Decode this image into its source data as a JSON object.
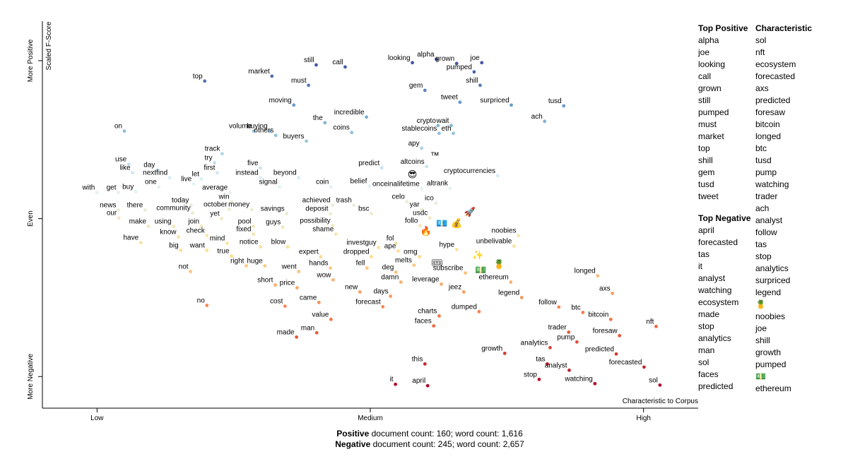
{
  "chart_data": {
    "type": "scatter",
    "y_label": "Scaled F-Score",
    "x_label": "Characteristic to Corpus",
    "xlim": [
      -0.1,
      1.1
    ],
    "ylim": [
      -1.2,
      1.25
    ],
    "xticks": [
      {
        "value": 0,
        "label": "Low"
      },
      {
        "value": 0.5,
        "label": "Medium"
      },
      {
        "value": 1,
        "label": "High"
      }
    ],
    "yticks": [
      {
        "value": -1,
        "label": "More Negative"
      },
      {
        "value": 0,
        "label": "Even"
      },
      {
        "value": 1,
        "label": "More Positive"
      }
    ],
    "points": [
      {
        "label": "still",
        "x": 0.401,
        "y": 0.973
      },
      {
        "label": "call",
        "x": 0.454,
        "y": 0.96
      },
      {
        "label": "looking",
        "x": 0.577,
        "y": 0.987
      },
      {
        "label": "alpha",
        "x": 0.621,
        "y": 1.009
      },
      {
        "label": "joe",
        "x": 0.704,
        "y": 0.987
      },
      {
        "label": "market",
        "x": 0.32,
        "y": 0.902
      },
      {
        "label": "grown",
        "x": 0.658,
        "y": 0.982
      },
      {
        "label": "pumped",
        "x": 0.69,
        "y": 0.929
      },
      {
        "label": "top",
        "x": 0.197,
        "y": 0.871
      },
      {
        "label": "must",
        "x": 0.387,
        "y": 0.844
      },
      {
        "label": "gem",
        "x": 0.6,
        "y": 0.812
      },
      {
        "label": "shill",
        "x": 0.701,
        "y": 0.844
      },
      {
        "label": "tweet",
        "x": 0.664,
        "y": 0.737
      },
      {
        "label": "surpriced",
        "x": 0.758,
        "y": 0.719
      },
      {
        "label": "tusd",
        "x": 0.854,
        "y": 0.714
      },
      {
        "label": "moving",
        "x": 0.36,
        "y": 0.719
      },
      {
        "label": "incredible",
        "x": 0.493,
        "y": 0.643
      },
      {
        "label": "wait",
        "x": 0.648,
        "y": 0.589
      },
      {
        "label": "buying",
        "x": 0.316,
        "y": 0.554
      },
      {
        "label": "volume",
        "x": 0.287,
        "y": 0.554
      },
      {
        "label": "others",
        "x": 0.327,
        "y": 0.527
      },
      {
        "label": "the",
        "x": 0.417,
        "y": 0.607
      },
      {
        "label": "crypto",
        "x": 0.624,
        "y": 0.589
      },
      {
        "label": "ach",
        "x": 0.819,
        "y": 0.616
      },
      {
        "label": "on",
        "x": 0.05,
        "y": 0.554
      },
      {
        "label": "coins",
        "x": 0.466,
        "y": 0.545
      },
      {
        "label": "buyers",
        "x": 0.383,
        "y": 0.491
      },
      {
        "label": "stablecoins",
        "x": 0.626,
        "y": 0.54
      },
      {
        "label": "eth",
        "x": 0.652,
        "y": 0.54
      },
      {
        "label": "track",
        "x": 0.229,
        "y": 0.411
      },
      {
        "label": "apy",
        "x": 0.594,
        "y": 0.446
      },
      {
        "label": "™",
        "x": 0.618,
        "y": 0.402
      },
      {
        "label": "use",
        "x": 0.058,
        "y": 0.344
      },
      {
        "label": "five",
        "x": 0.299,
        "y": 0.321
      },
      {
        "label": "altcoins",
        "x": 0.603,
        "y": 0.33
      },
      {
        "label": "try",
        "x": 0.215,
        "y": 0.353
      },
      {
        "label": "day",
        "x": 0.11,
        "y": 0.308
      },
      {
        "label": "first",
        "x": 0.22,
        "y": 0.29
      },
      {
        "label": "predict",
        "x": 0.521,
        "y": 0.321
      },
      {
        "label": "😎",
        "x": 0.577,
        "y": 0.281
      },
      {
        "label": "cryptocurrencies",
        "x": 0.733,
        "y": 0.272
      },
      {
        "label": "like",
        "x": 0.065,
        "y": 0.29
      },
      {
        "label": "nextfind",
        "x": 0.133,
        "y": 0.259
      },
      {
        "label": "let",
        "x": 0.191,
        "y": 0.25
      },
      {
        "label": "instead",
        "x": 0.299,
        "y": 0.259
      },
      {
        "label": "beyond",
        "x": 0.369,
        "y": 0.259
      },
      {
        "label": "one",
        "x": 0.113,
        "y": 0.201
      },
      {
        "label": "live",
        "x": 0.177,
        "y": 0.219
      },
      {
        "label": "signal",
        "x": 0.334,
        "y": 0.201
      },
      {
        "label": "coin",
        "x": 0.428,
        "y": 0.201
      },
      {
        "label": "belief",
        "x": 0.498,
        "y": 0.205
      },
      {
        "label": "onceinalifetime",
        "x": 0.594,
        "y": 0.188
      },
      {
        "label": "altrank",
        "x": 0.646,
        "y": 0.192
      },
      {
        "label": "with",
        "x": 0,
        "y": 0.165
      },
      {
        "label": "get",
        "x": 0.039,
        "y": 0.165
      },
      {
        "label": "buy",
        "x": 0.071,
        "y": 0.17
      },
      {
        "label": "average",
        "x": 0.243,
        "y": 0.165
      },
      {
        "label": "win",
        "x": 0.246,
        "y": 0.107
      },
      {
        "label": "celo",
        "x": 0.567,
        "y": 0.107
      },
      {
        "label": "ico",
        "x": 0.62,
        "y": 0.098
      },
      {
        "label": "today",
        "x": 0.172,
        "y": 0.085
      },
      {
        "label": "achieved",
        "x": 0.431,
        "y": 0.085
      },
      {
        "label": "trash",
        "x": 0.47,
        "y": 0.085
      },
      {
        "label": "news",
        "x": 0.039,
        "y": 0.054
      },
      {
        "label": "there",
        "x": 0.088,
        "y": 0.054
      },
      {
        "label": "community",
        "x": 0.175,
        "y": 0.036
      },
      {
        "label": "october",
        "x": 0.242,
        "y": 0.058
      },
      {
        "label": "money",
        "x": 0.283,
        "y": 0.058
      },
      {
        "label": "yar",
        "x": 0.594,
        "y": 0.058
      },
      {
        "label": "savings",
        "x": 0.347,
        "y": 0.031
      },
      {
        "label": "deposit",
        "x": 0.427,
        "y": 0.031
      },
      {
        "label": "bsc",
        "x": 0.502,
        "y": 0.031
      },
      {
        "label": "🚀",
        "x": 0.682,
        "y": 0.045
      },
      {
        "label": "usdc",
        "x": 0.609,
        "y": 0.004
      },
      {
        "label": "our",
        "x": 0.04,
        "y": 0.004
      },
      {
        "label": "yet",
        "x": 0.228,
        "y": 0
      },
      {
        "label": "make",
        "x": 0.094,
        "y": -0.049
      },
      {
        "label": "using",
        "x": 0.14,
        "y": -0.049
      },
      {
        "label": "join",
        "x": 0.191,
        "y": -0.049
      },
      {
        "label": "pool",
        "x": 0.286,
        "y": -0.049
      },
      {
        "label": "guys",
        "x": 0.34,
        "y": -0.054
      },
      {
        "label": "possibility",
        "x": 0.431,
        "y": -0.045
      },
      {
        "label": "follo",
        "x": 0.591,
        "y": -0.045
      },
      {
        "label": "💶",
        "x": 0.631,
        "y": -0.027
      },
      {
        "label": "💰",
        "x": 0.658,
        "y": -0.027
      },
      {
        "label": "fixed",
        "x": 0.286,
        "y": -0.098
      },
      {
        "label": "shame",
        "x": 0.437,
        "y": -0.098
      },
      {
        "label": "know",
        "x": 0.149,
        "y": -0.116
      },
      {
        "label": "check",
        "x": 0.201,
        "y": -0.107
      },
      {
        "label": "noobies",
        "x": 0.771,
        "y": -0.107
      },
      {
        "label": "🔥",
        "x": 0.602,
        "y": -0.076
      },
      {
        "label": "have",
        "x": 0.08,
        "y": -0.152
      },
      {
        "label": "mind",
        "x": 0.238,
        "y": -0.156
      },
      {
        "label": "fol",
        "x": 0.547,
        "y": -0.156
      },
      {
        "label": "notice",
        "x": 0.299,
        "y": -0.179
      },
      {
        "label": "blow",
        "x": 0.349,
        "y": -0.179
      },
      {
        "label": "investguy",
        "x": 0.515,
        "y": -0.183
      },
      {
        "label": "ape",
        "x": 0.551,
        "y": -0.205
      },
      {
        "label": "unbelivable",
        "x": 0.763,
        "y": -0.174
      },
      {
        "label": "big",
        "x": 0.153,
        "y": -0.201
      },
      {
        "label": "want",
        "x": 0.201,
        "y": -0.201
      },
      {
        "label": "hype",
        "x": 0.658,
        "y": -0.196
      },
      {
        "label": "omg",
        "x": 0.59,
        "y": -0.241
      },
      {
        "label": "expert",
        "x": 0.409,
        "y": -0.241
      },
      {
        "label": "true",
        "x": 0.246,
        "y": -0.237
      },
      {
        "label": "dropped",
        "x": 0.502,
        "y": -0.241
      },
      {
        "label": "✨",
        "x": 0.697,
        "y": -0.228
      },
      {
        "label": "melts",
        "x": 0.58,
        "y": -0.295
      },
      {
        "label": "right",
        "x": 0.273,
        "y": -0.299
      },
      {
        "label": "huge",
        "x": 0.307,
        "y": -0.299
      },
      {
        "label": "hands",
        "x": 0.427,
        "y": -0.313
      },
      {
        "label": "fell",
        "x": 0.494,
        "y": -0.313
      },
      {
        "label": "subscribe",
        "x": 0.674,
        "y": -0.344
      },
      {
        "label": "🎟",
        "x": 0.622,
        "y": -0.277
      },
      {
        "label": "💵",
        "x": 0.702,
        "y": -0.321
      },
      {
        "label": "🍍",
        "x": 0.736,
        "y": -0.286
      },
      {
        "label": "not",
        "x": 0.171,
        "y": -0.335
      },
      {
        "label": "went",
        "x": 0.369,
        "y": -0.335
      },
      {
        "label": "deg",
        "x": 0.547,
        "y": -0.339
      },
      {
        "label": "wow",
        "x": 0.432,
        "y": -0.388
      },
      {
        "label": "ethereum",
        "x": 0.757,
        "y": -0.402
      },
      {
        "label": "short",
        "x": 0.326,
        "y": -0.42
      },
      {
        "label": "damn",
        "x": 0.556,
        "y": -0.402
      },
      {
        "label": "leverage",
        "x": 0.63,
        "y": -0.415
      },
      {
        "label": "price",
        "x": 0.366,
        "y": -0.438
      },
      {
        "label": "new",
        "x": 0.481,
        "y": -0.464
      },
      {
        "label": "jeez",
        "x": 0.671,
        "y": -0.464
      },
      {
        "label": "days",
        "x": 0.537,
        "y": -0.491
      },
      {
        "label": "legend",
        "x": 0.777,
        "y": -0.5
      },
      {
        "label": "longed",
        "x": 0.916,
        "y": -0.362
      },
      {
        "label": "axs",
        "x": 0.943,
        "y": -0.473
      },
      {
        "label": "came",
        "x": 0.406,
        "y": -0.531
      },
      {
        "label": "cost",
        "x": 0.344,
        "y": -0.554
      },
      {
        "label": "forecast",
        "x": 0.523,
        "y": -0.558
      },
      {
        "label": "no",
        "x": 0.201,
        "y": -0.549
      },
      {
        "label": "follow",
        "x": 0.845,
        "y": -0.56
      },
      {
        "label": "btc",
        "x": 0.889,
        "y": -0.594
      },
      {
        "label": "dumped",
        "x": 0.699,
        "y": -0.589
      },
      {
        "label": "charts",
        "x": 0.626,
        "y": -0.616
      },
      {
        "label": "value",
        "x": 0.428,
        "y": -0.638
      },
      {
        "label": "bitcoin",
        "x": 0.94,
        "y": -0.638
      },
      {
        "label": "faces",
        "x": 0.616,
        "y": -0.679
      },
      {
        "label": "nft",
        "x": 1.023,
        "y": -0.683
      },
      {
        "label": "man",
        "x": 0.402,
        "y": -0.723
      },
      {
        "label": "made",
        "x": 0.365,
        "y": -0.75
      },
      {
        "label": "trader",
        "x": 0.863,
        "y": -0.719
      },
      {
        "label": "foresaw",
        "x": 0.956,
        "y": -0.741
      },
      {
        "label": "pump",
        "x": 0.878,
        "y": -0.781
      },
      {
        "label": "analytics",
        "x": 0.829,
        "y": -0.817
      },
      {
        "label": "growth",
        "x": 0.746,
        "y": -0.853
      },
      {
        "label": "predicted",
        "x": 0.95,
        "y": -0.857
      },
      {
        "label": "this",
        "x": 0.6,
        "y": -0.92
      },
      {
        "label": "tas",
        "x": 0.824,
        "y": -0.92
      },
      {
        "label": "forecasted",
        "x": 1.001,
        "y": -0.94
      },
      {
        "label": "analyst",
        "x": 0.864,
        "y": -0.96
      },
      {
        "label": "stop",
        "x": 0.809,
        "y": -1.018
      },
      {
        "label": "watching",
        "x": 0.911,
        "y": -1.045
      },
      {
        "label": "sol",
        "x": 1.03,
        "y": -1.054
      },
      {
        "label": "it",
        "x": 0.546,
        "y": -1.049
      },
      {
        "label": "april",
        "x": 0.605,
        "y": -1.058
      }
    ]
  },
  "top_positive": {
    "title": "Top Positive",
    "terms": [
      "alpha",
      "joe",
      "looking",
      "call",
      "grown",
      "still",
      "pumped",
      "must",
      "market",
      "top",
      "shill",
      "gem",
      "tusd",
      "tweet"
    ]
  },
  "top_negative": {
    "title": "Top Negative",
    "terms": [
      "april",
      "forecasted",
      "tas",
      "it",
      "analyst",
      "watching",
      "ecosystem",
      "made",
      "stop",
      "analytics",
      "man",
      "sol",
      "faces",
      "predicted"
    ]
  },
  "characteristic": {
    "title": "Characteristic",
    "terms": [
      "sol",
      "nft",
      "ecosystem",
      "forecasted",
      "axs",
      "predicted",
      "foresaw",
      "bitcoin",
      "longed",
      "btc",
      "tusd",
      "pump",
      "watching",
      "trader",
      "ach",
      "analyst",
      "follow",
      "tas",
      "stop",
      "analytics",
      "surpriced",
      "legend",
      "🍍",
      "noobies",
      "joe",
      "shill",
      "growth",
      "pumped",
      "💵",
      "ethereum"
    ]
  },
  "footer": [
    {
      "category": "Positive",
      "text": "document count: 160; word count: 1,616"
    },
    {
      "category": "Negative",
      "text": "document count: 245; word count: 2,657"
    }
  ]
}
